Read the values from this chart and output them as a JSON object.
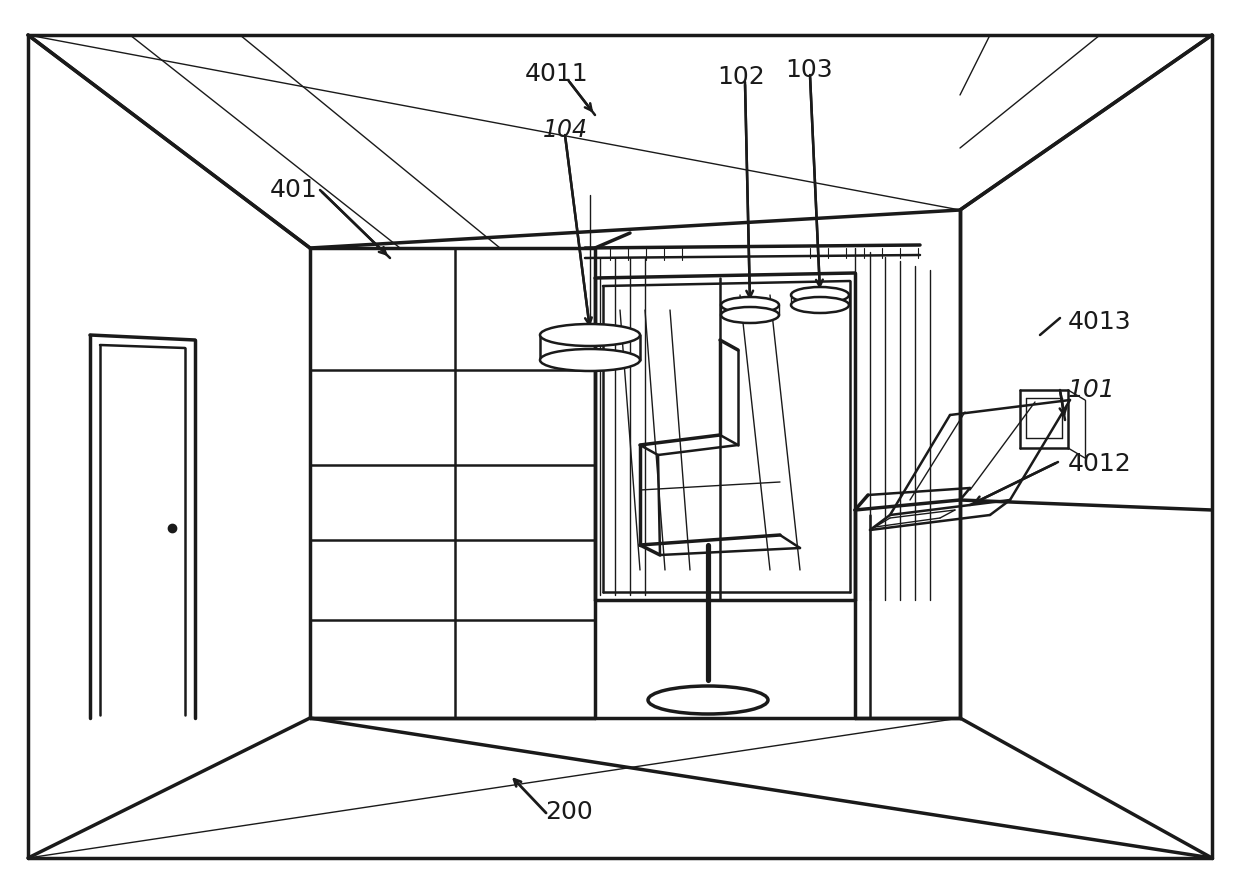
{
  "background_color": "#ffffff",
  "line_color": "#1a1a1a",
  "lw_thick": 2.5,
  "lw_med": 1.8,
  "lw_thin": 1.0,
  "figsize": [
    12.4,
    8.81
  ],
  "dpi": 100
}
